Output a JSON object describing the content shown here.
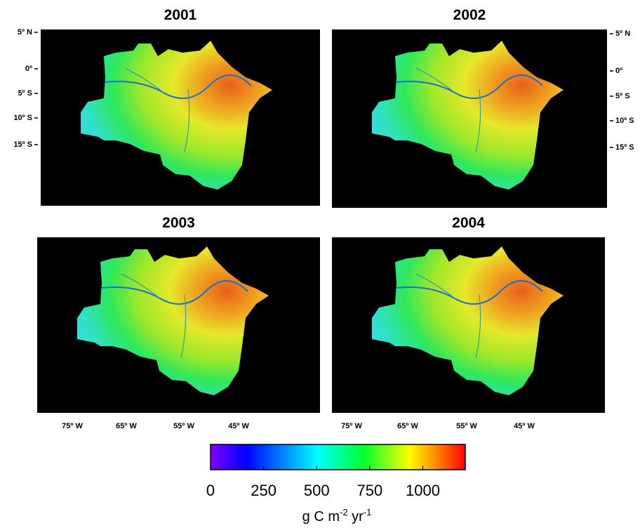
{
  "panels": [
    {
      "title": "2001"
    },
    {
      "title": "2002"
    },
    {
      "title": "2003"
    },
    {
      "title": "2004"
    }
  ],
  "lat_labels": [
    "5º N",
    "0º",
    "5º S",
    "10º S",
    "15º S"
  ],
  "lon_labels": [
    "75º W",
    "65º W",
    "55º W",
    "45º W"
  ],
  "colorbar": {
    "range": [
      0,
      1200
    ],
    "ticks": [
      0,
      250,
      500,
      750,
      1000
    ],
    "unit": {
      "part1": "g C m",
      "exp1": "-2",
      "part2": " yr",
      "exp2": "-1"
    }
  }
}
